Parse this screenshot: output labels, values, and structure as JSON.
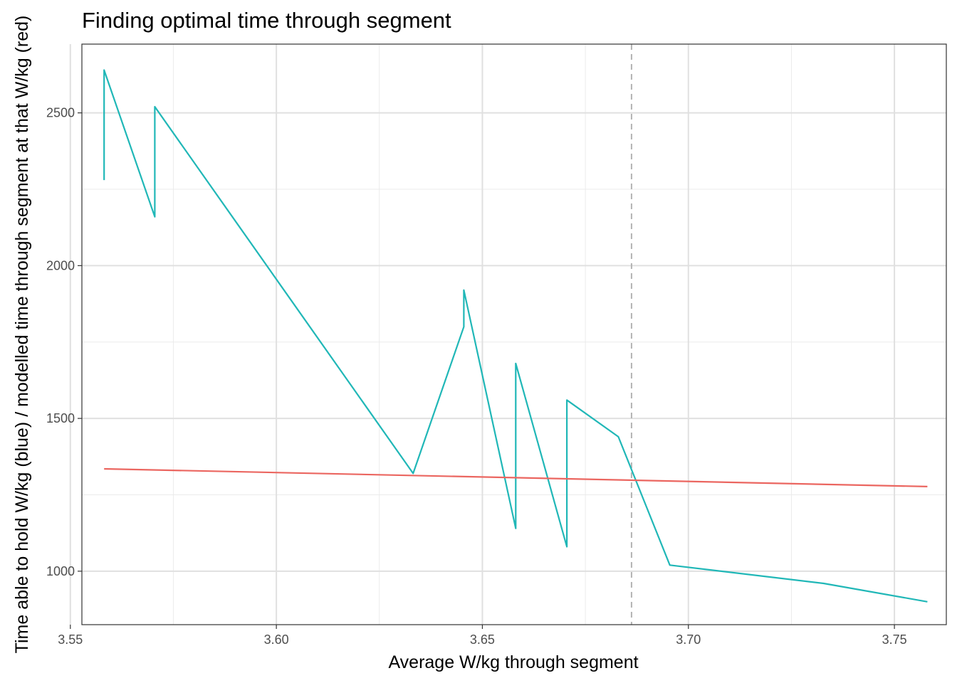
{
  "chart_data": {
    "type": "line",
    "title": "Finding optimal time through segment",
    "xlabel": "Average W/kg through segment",
    "ylabel": "Time able to hold W/kg (blue) / modelled time through segment at that W/kg (red)",
    "xlim": [
      3.5528,
      3.7626
    ],
    "ylim": [
      825,
      2725
    ],
    "x_ticks": [
      "3.55",
      "3.60",
      "3.65",
      "3.70",
      "3.75"
    ],
    "y_ticks": [
      "1000",
      "1500",
      "2000",
      "2500"
    ],
    "x_tick_values": [
      3.55,
      3.6,
      3.65,
      3.7,
      3.75
    ],
    "y_tick_values": [
      1000,
      1500,
      2000,
      2500
    ],
    "x_minor_values": [
      3.575,
      3.625,
      3.675,
      3.725
    ],
    "y_minor_values": [
      1250,
      1750,
      2250
    ],
    "grid": true,
    "legend": "none",
    "reference_line": {
      "x": 3.6862,
      "style": "dashed",
      "color": "#b3b3b3"
    },
    "series": [
      {
        "color": "#20b7b7",
        "x": [
          3.5582,
          3.5582,
          3.5705,
          3.5705,
          3.6332,
          3.6455,
          3.6455,
          3.6581,
          3.6581,
          3.6705,
          3.6705,
          3.683,
          3.6955,
          3.7328,
          3.758
        ],
        "y": [
          2280,
          2640,
          2160,
          2520,
          1320,
          1800,
          1920,
          1140,
          1680,
          1080,
          1560,
          1440,
          1020,
          960,
          900
        ]
      },
      {
        "color": "#eb6660",
        "x": [
          3.5582,
          3.758
        ],
        "y": [
          1335,
          1277
        ]
      }
    ]
  }
}
